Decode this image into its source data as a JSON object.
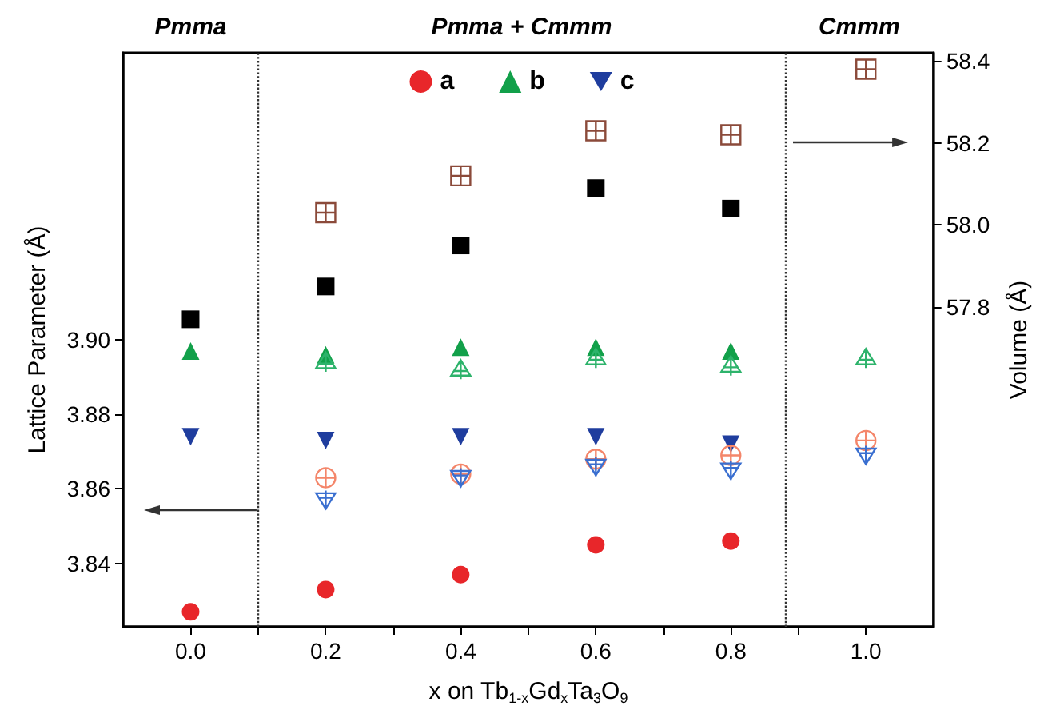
{
  "chart_data": {
    "type": "scatter",
    "xlabel": "x on Tb$_{1-x}$Gd$_{x}$Ta$_{3}$O$_{9}$",
    "ylabel": "Lattice Parameter (Å)",
    "y2label": "Volume (Å)",
    "x": [
      0.0,
      0.2,
      0.4,
      0.6,
      0.8,
      1.0
    ],
    "xlim": [
      -0.1,
      1.1
    ],
    "xticks": [
      {
        "value": 0.0,
        "label": "0.0"
      },
      {
        "value": 0.1,
        "label": null
      },
      {
        "value": 0.2,
        "label": "0.2"
      },
      {
        "value": 0.3,
        "label": null
      },
      {
        "value": 0.4,
        "label": "0.4"
      },
      {
        "value": 0.5,
        "label": null
      },
      {
        "value": 0.6,
        "label": "0.6"
      },
      {
        "value": 0.7,
        "label": null
      },
      {
        "value": 0.8,
        "label": "0.8"
      },
      {
        "value": 0.9,
        "label": null
      },
      {
        "value": 1.0,
        "label": "1.0"
      }
    ],
    "ylim": [
      3.823,
      3.977
    ],
    "yticks": [
      3.84,
      3.86,
      3.88,
      {
        "value": 3.9,
        "label": "3.90"
      }
    ],
    "y2lim": [
      57.02,
      58.42
    ],
    "y2ticks": [
      57.8,
      {
        "value": 58.0,
        "label": "58.0"
      },
      58.2,
      58.4
    ],
    "series": [
      {
        "name": "a",
        "color": "#e8262a",
        "marker": "circle",
        "values": [
          3.827,
          3.833,
          3.837,
          3.845,
          3.846,
          null
        ]
      },
      {
        "name": "b",
        "color": "#12a04a",
        "marker": "triangle",
        "values": [
          3.897,
          3.896,
          3.898,
          3.898,
          3.897,
          null
        ]
      },
      {
        "name": "c",
        "color": "#1f3d9e",
        "marker": "triangle-down",
        "values": [
          3.874,
          3.873,
          3.874,
          3.874,
          3.872,
          null
        ]
      },
      {
        "color": "#000000",
        "marker": "square",
        "axis": "y2",
        "values": [
          57.77,
          57.85,
          57.95,
          58.09,
          58.04,
          null
        ]
      },
      {
        "color": "#f4866a",
        "marker": "cross",
        "values": [
          null,
          3.863,
          3.864,
          3.868,
          3.869,
          3.873
        ]
      },
      {
        "color": "#2db36b",
        "marker": "cross",
        "values": [
          null,
          3.894,
          3.892,
          3.895,
          3.893,
          3.895
        ]
      },
      {
        "color": "#3a6fd0",
        "marker": "cross",
        "values": [
          null,
          3.857,
          3.863,
          3.866,
          3.865,
          3.869
        ]
      },
      {
        "color": "#8b4a3a",
        "marker": "cross",
        "axis": "y2",
        "values": [
          null,
          58.03,
          58.12,
          58.23,
          58.22,
          58.38
        ]
      }
    ],
    "ref_lines": [
      {
        "axis": "x",
        "value": 0.1,
        "line_style": "dotted",
        "color": "#333333"
      },
      {
        "axis": "x",
        "value": 0.88,
        "line_style": "dotted",
        "color": "#333333"
      }
    ],
    "annotations": [
      "Pmma",
      "Pmma + Cmmm",
      "Cmmm"
    ],
    "legend": "top",
    "grid": false
  }
}
